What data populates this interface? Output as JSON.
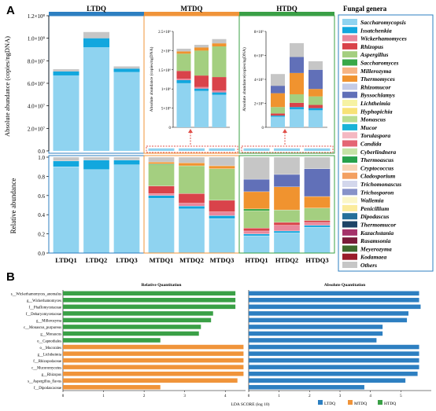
{
  "panel_a": {
    "letter": "A",
    "y_top_label": "Absolute abundance (copies/ngDNA)",
    "y_bottom_label": "Relative abundance",
    "groups": [
      "LTDQ",
      "MTDQ",
      "HTDQ"
    ],
    "group_colors": [
      "#2d7fc1",
      "#f0943a",
      "#3aa046"
    ],
    "samples": [
      "LTDQ1",
      "LTDQ2",
      "LTDQ3",
      "MTDQ1",
      "MTDQ2",
      "MTDQ3",
      "HTDQ1",
      "HTDQ2",
      "HTDQ3"
    ],
    "top_ticks": [
      "0.0",
      "2.0×10⁷",
      "4.0×10⁷",
      "6.0×10⁷",
      "8.0×10⁷",
      "1.0×10⁸",
      "1.2×10⁸"
    ],
    "bottom_ticks": [
      "0.0",
      "0.2",
      "0.4",
      "0.6",
      "0.8",
      "1.0"
    ],
    "inset_mt": {
      "ylabel": "Absolute abundance (copies/ngDNA)",
      "ticks": [
        "0",
        "5×10⁵",
        "1×10⁶",
        "1.5×10⁶",
        "2×10⁶",
        "2.5×10⁶"
      ]
    },
    "inset_ht": {
      "ylabel": "Absolute abundance(copies/ngDNA)",
      "ticks": [
        "0",
        "2×10⁵",
        "4×10⁵",
        "6×10⁵",
        "8×10⁵"
      ]
    }
  },
  "legend": {
    "title": "Fungal genera",
    "items": [
      {
        "name": "Saccharomycopsis",
        "color": "#8fd3f0"
      },
      {
        "name": "Issatchenkia",
        "color": "#12a7de"
      },
      {
        "name": "Wickerhamomyces",
        "color": "#e9879c"
      },
      {
        "name": "Rhizopus",
        "color": "#d9434a"
      },
      {
        "name": "Aspergillus",
        "color": "#a4cf80"
      },
      {
        "name": "Saccharomyces",
        "color": "#38a848"
      },
      {
        "name": "Millerozyma",
        "color": "#f6b483"
      },
      {
        "name": "Thermomyces",
        "color": "#f0932f"
      },
      {
        "name": "Rhizomucor",
        "color": "#c4cbe6"
      },
      {
        "name": "Byssochlamys",
        "color": "#6170b8"
      },
      {
        "name": "Lichtheimia",
        "color": "#f6f2a3"
      },
      {
        "name": "Hyphopichia",
        "color": "#f8e277"
      },
      {
        "name": "Monascus",
        "color": "#b9dd92"
      },
      {
        "name": "Mucor",
        "color": "#1ab3d8"
      },
      {
        "name": "Torulaspora",
        "color": "#f4b8c2"
      },
      {
        "name": "Candida",
        "color": "#e46674"
      },
      {
        "name": "Cyberlindnera",
        "color": "#c5e3a6"
      },
      {
        "name": "Thermoascus",
        "color": "#27a14b"
      },
      {
        "name": "Cryptococcus",
        "color": "#f7d4b6"
      },
      {
        "name": "Cladosporium",
        "color": "#f3a061"
      },
      {
        "name": "Trichomonascus",
        "color": "#d3d7ec"
      },
      {
        "name": "Trichosporon",
        "color": "#8792c9"
      },
      {
        "name": "Wallemia",
        "color": "#fbf6c8"
      },
      {
        "name": "Penicillium",
        "color": "#fbeb9b"
      },
      {
        "name": "Dipodascus",
        "color": "#256f9a"
      },
      {
        "name": "Thermomucor",
        "color": "#1d4466"
      },
      {
        "name": "Kazachstania",
        "color": "#a5326a"
      },
      {
        "name": "Rasamsonia",
        "color": "#7b1b3b"
      },
      {
        "name": "Meyerozyma",
        "color": "#3f6a2e"
      },
      {
        "name": "Kodamaea",
        "color": "#9a1c2a"
      },
      {
        "name": "Others",
        "color": "#c6c6c6"
      }
    ]
  },
  "panel_b": {
    "letter": "B",
    "left_title": "Relative Quantitation",
    "right_title": "Absolute Quantitation",
    "xlabel": "LDA SCORE (log 10)",
    "left_ticks": [
      "0",
      "1",
      "2",
      "3",
      "4"
    ],
    "right_ticks": [
      "0",
      "1",
      "2",
      "3",
      "4",
      "5"
    ],
    "legend": [
      {
        "name": "LTDQ",
        "color": "#2d7fc1"
      },
      {
        "name": "MTDQ",
        "color": "#f0943a"
      },
      {
        "name": "HTDQ",
        "color": "#3aa046"
      }
    ],
    "features": [
      "s__Wickerhamomyces_anomalus",
      "g__Wickerhamomyces",
      "f__Phaffomycetaceae",
      "f__Debaryomycetaceae",
      "g__Millerozyma",
      "c__Monascus_purpureus",
      "g__Monascus",
      "o__Capnodiales",
      "o__Mucorales",
      "g__Lichtheimia",
      "f__Rhizopodaceae",
      "c__Mucoromycetes",
      "g__Rhizopus",
      "s__Aspergillus_flavus",
      "f__Dipodascaceae"
    ]
  },
  "chart_data": [
    {
      "type": "bar",
      "title": "",
      "ylabel": "Absolute abundance (copies/ngDNA)",
      "categories": [
        "LTDQ1",
        "LTDQ2",
        "LTDQ3"
      ],
      "ylim": [
        0,
        120000000
      ],
      "series": [
        {
          "name": "Saccharomycopsis",
          "values": [
            67000000,
            92000000,
            70000000
          ]
        },
        {
          "name": "Issatchenkia",
          "values": [
            3500000,
            8000000,
            3000000
          ]
        },
        {
          "name": "Others",
          "values": [
            2000000,
            5500000,
            2000000
          ]
        }
      ]
    },
    {
      "type": "bar",
      "title": "",
      "ylabel": "Absolute abundance (copies/ngDNA)",
      "categories": [
        "MTDQ1",
        "MTDQ2",
        "MTDQ3"
      ],
      "ylim": [
        0,
        2500000
      ],
      "series": [
        {
          "name": "Saccharomycopsis",
          "values": [
            1150000,
            950000,
            850000
          ]
        },
        {
          "name": "Issatchenkia",
          "values": [
            80000,
            60000,
            60000
          ]
        },
        {
          "name": "Wickerhamomyces",
          "values": [
            40000,
            40000,
            50000
          ]
        },
        {
          "name": "Rhizopus",
          "values": [
            200000,
            300000,
            350000
          ]
        },
        {
          "name": "Aspergillus",
          "values": [
            450000,
            650000,
            800000
          ]
        },
        {
          "name": "Thermomyces",
          "values": [
            60000,
            80000,
            80000
          ]
        },
        {
          "name": "Others",
          "values": [
            70000,
            70000,
            110000
          ]
        }
      ]
    },
    {
      "type": "bar",
      "title": "",
      "ylabel": "Absolute abundance(copies/ngDNA)",
      "categories": [
        "HTDQ1",
        "HTDQ2",
        "HTDQ3"
      ],
      "ylim": [
        0,
        900000
      ],
      "series": [
        {
          "name": "Saccharomycopsis",
          "values": [
            100000,
            170000,
            160000
          ]
        },
        {
          "name": "Issatchenkia",
          "values": [
            10000,
            20000,
            20000
          ]
        },
        {
          "name": "Rhizopus",
          "values": [
            20000,
            40000,
            30000
          ]
        },
        {
          "name": "Aspergillus",
          "values": [
            60000,
            80000,
            80000
          ]
        },
        {
          "name": "Thermomyces",
          "values": [
            130000,
            200000,
            70000
          ]
        },
        {
          "name": "Byssochlamys",
          "values": [
            70000,
            150000,
            180000
          ]
        },
        {
          "name": "Others",
          "values": [
            110000,
            130000,
            80000
          ]
        }
      ]
    },
    {
      "type": "bar",
      "title": "",
      "ylabel": "Relative abundance",
      "categories": [
        "LTDQ1",
        "LTDQ2",
        "LTDQ3",
        "MTDQ1",
        "MTDQ2",
        "MTDQ3",
        "HTDQ1",
        "HTDQ2",
        "HTDQ3"
      ],
      "ylim": [
        0,
        1.0
      ],
      "series": [
        {
          "name": "Saccharomycopsis",
          "values": [
            0.9,
            0.87,
            0.92,
            0.57,
            0.46,
            0.36,
            0.18,
            0.21,
            0.27
          ]
        },
        {
          "name": "Issatchenkia",
          "values": [
            0.06,
            0.1,
            0.05,
            0.03,
            0.03,
            0.03,
            0.02,
            0.02,
            0.02
          ]
        },
        {
          "name": "Wickerhamomyces",
          "values": [
            0.0,
            0.0,
            0.0,
            0.02,
            0.03,
            0.04,
            0.03,
            0.06,
            0.03
          ]
        },
        {
          "name": "Rhizopus",
          "values": [
            0.0,
            0.0,
            0.0,
            0.08,
            0.1,
            0.12,
            0.03,
            0.03,
            0.02
          ]
        },
        {
          "name": "Aspergillus",
          "values": [
            0.0,
            0.0,
            0.0,
            0.22,
            0.29,
            0.33,
            0.18,
            0.13,
            0.13
          ]
        },
        {
          "name": "Saccharomyces",
          "values": [
            0.0,
            0.0,
            0.0,
            0.01,
            0.0,
            0.0,
            0.02,
            0.0,
            0.0
          ]
        },
        {
          "name": "Thermomyces",
          "values": [
            0.0,
            0.0,
            0.0,
            0.02,
            0.03,
            0.03,
            0.18,
            0.24,
            0.12
          ]
        },
        {
          "name": "Byssochlamys",
          "values": [
            0.0,
            0.0,
            0.0,
            0.0,
            0.0,
            0.0,
            0.13,
            0.13,
            0.29
          ]
        },
        {
          "name": "Others",
          "values": [
            0.04,
            0.03,
            0.03,
            0.05,
            0.06,
            0.09,
            0.23,
            0.18,
            0.12
          ]
        }
      ]
    },
    {
      "type": "bar",
      "title": "Relative Quantitation",
      "xlabel": "LDA SCORE (log 10)",
      "orientation": "horizontal",
      "categories": [
        "s__Wickerhamomyces_anomalus",
        "g__Wickerhamomyces",
        "f__Phaffomycetaceae",
        "f__Debaryomycetaceae",
        "g__Millerozyma",
        "c__Monascus_purpureus",
        "g__Monascus",
        "o__Capnodiales",
        "o__Mucorales",
        "g__Lichtheimia",
        "f__Rhizopodaceae",
        "c__Mucoromycetes",
        "g__Rhizopus",
        "s__Aspergillus_flavus",
        "f__Dipodascaceae"
      ],
      "values": [
        4.25,
        4.25,
        4.25,
        3.7,
        3.65,
        3.4,
        3.35,
        2.4,
        4.45,
        4.45,
        4.45,
        4.45,
        4.45,
        4.3,
        2.4
      ],
      "groups": [
        "HTDQ",
        "HTDQ",
        "HTDQ",
        "HTDQ",
        "HTDQ",
        "HTDQ",
        "HTDQ",
        "HTDQ",
        "MTDQ",
        "MTDQ",
        "MTDQ",
        "MTDQ",
        "MTDQ",
        "MTDQ",
        "MTDQ"
      ],
      "xlim": [
        0,
        4.5
      ]
    },
    {
      "type": "bar",
      "title": "Absolute Quantitation",
      "xlabel": "LDA SCORE (log 10)",
      "orientation": "horizontal",
      "categories": [
        "s__Wickerhamomyces_anomalus",
        "g__Wickerhamomyces",
        "f__Phaffomycetaceae",
        "f__Debaryomycetaceae",
        "g__Millerozyma",
        "c__Monascus_purpureus",
        "g__Monascus",
        "o__Capnodiales",
        "o__Mucorales",
        "g__Lichtheimia",
        "f__Rhizopodaceae",
        "c__Mucoromycetes",
        "g__Rhizopus",
        "s__Aspergillus_flavus",
        "f__Dipodascaceae"
      ],
      "values": [
        5.6,
        5.6,
        5.65,
        5.25,
        5.2,
        4.4,
        4.4,
        4.2,
        5.6,
        5.6,
        5.6,
        5.6,
        5.55,
        5.15,
        3.8
      ],
      "groups": [
        "LTDQ",
        "LTDQ",
        "LTDQ",
        "LTDQ",
        "LTDQ",
        "LTDQ",
        "LTDQ",
        "LTDQ",
        "LTDQ",
        "LTDQ",
        "LTDQ",
        "LTDQ",
        "LTDQ",
        "LTDQ",
        "LTDQ"
      ],
      "xlim": [
        0,
        6.0
      ]
    }
  ]
}
